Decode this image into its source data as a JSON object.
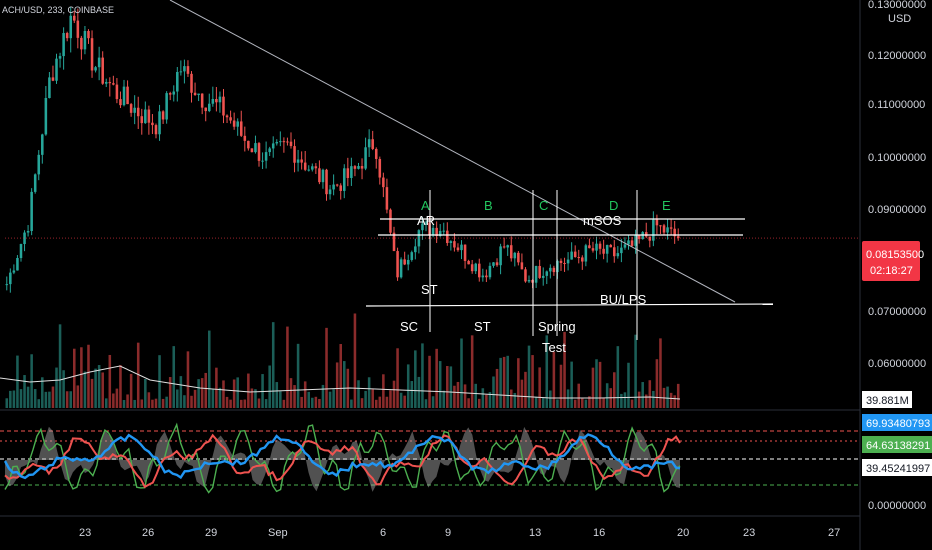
{
  "header": {
    "title": "ACH/USD, 233, COINBASE",
    "currency": "USD"
  },
  "price_axis": {
    "ticks": [
      "0.13000000",
      "0.12000000",
      "0.11000000",
      "0.10000000",
      "0.09000000",
      "0.07000000",
      "0.06000000",
      "0.00000000"
    ],
    "current_price": "0.08153500",
    "countdown": "02:18:27",
    "volume_badge": "39.881M",
    "osc_badges": [
      "69.93480793",
      "64.63138291",
      "39.45241997"
    ]
  },
  "time_axis": {
    "labels": [
      "23",
      "26",
      "29",
      "Sep",
      "6",
      "9",
      "13",
      "16",
      "20",
      "23",
      "27"
    ]
  },
  "annotations": {
    "phases": [
      "A",
      "B",
      "C",
      "D",
      "E"
    ],
    "labels": [
      "AR",
      "mSOS",
      "ST",
      "BU/LPS",
      "SC",
      "ST",
      "Spring",
      "Test"
    ]
  },
  "colors": {
    "up": "#26a69a",
    "down": "#ef5350",
    "price_badge": "#f23645",
    "osc_blue": "#2196f3",
    "osc_red": "#ef5350",
    "osc_green": "#4caf50",
    "osc_yellow": "#ffeb3b",
    "phase_green": "#22c55e"
  },
  "chart_data": {
    "type": "candlestick",
    "symbol": "ACH/USD",
    "close_path": [
      {
        "x": "Aug 20",
        "y": 0.072
      },
      {
        "x": "Aug 21",
        "y": 0.085
      },
      {
        "x": "Aug 22",
        "y": 0.115
      },
      {
        "x": "Aug 23",
        "y": 0.128
      },
      {
        "x": "Aug 24",
        "y": 0.118
      },
      {
        "x": "Aug 25",
        "y": 0.112
      },
      {
        "x": "Aug 26",
        "y": 0.108
      },
      {
        "x": "Aug 27",
        "y": 0.105
      },
      {
        "x": "Aug 28",
        "y": 0.117
      },
      {
        "x": "Aug 29",
        "y": 0.111
      },
      {
        "x": "Aug 30",
        "y": 0.108
      },
      {
        "x": "Aug 31",
        "y": 0.102
      },
      {
        "x": "Sep 1",
        "y": 0.098
      },
      {
        "x": "Sep 2",
        "y": 0.101
      },
      {
        "x": "Sep 3",
        "y": 0.096
      },
      {
        "x": "Sep 4",
        "y": 0.092
      },
      {
        "x": "Sep 5",
        "y": 0.095
      },
      {
        "x": "Sep 6",
        "y": 0.102
      },
      {
        "x": "Sep 7",
        "y": 0.074
      },
      {
        "x": "Sep 8",
        "y": 0.083
      },
      {
        "x": "Sep 9",
        "y": 0.084
      },
      {
        "x": "Sep 10",
        "y": 0.079
      },
      {
        "x": "Sep 11",
        "y": 0.074
      },
      {
        "x": "Sep 12",
        "y": 0.08
      },
      {
        "x": "Sep 13",
        "y": 0.073
      },
      {
        "x": "Sep 14",
        "y": 0.076
      },
      {
        "x": "Sep 15",
        "y": 0.077
      },
      {
        "x": "Sep 16",
        "y": 0.079
      },
      {
        "x": "Sep 17",
        "y": 0.078
      },
      {
        "x": "Sep 18",
        "y": 0.08
      },
      {
        "x": "Sep 19",
        "y": 0.084
      },
      {
        "x": "Sep 20",
        "y": 0.0815
      }
    ],
    "ylim": [
      0.05,
      0.13
    ],
    "current_price": 0.081535
  }
}
